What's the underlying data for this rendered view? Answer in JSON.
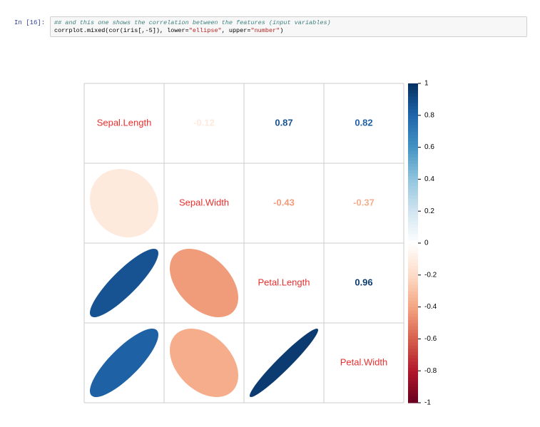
{
  "cell": {
    "prompt": "In [16]:",
    "comment": "## and this one shows the correlation between the features (input variables)",
    "code": [
      "corrplot.mixed(cor(iris[,-5]), lower=",
      "\"ellipse\"",
      ", upper=",
      "\"number\"",
      ")"
    ]
  },
  "chart_data": {
    "type": "corrplot",
    "variables": [
      "Sepal.Length",
      "Sepal.Width",
      "Petal.Length",
      "Petal.Width"
    ],
    "values": [
      [
        null,
        -0.12,
        0.87,
        0.82
      ],
      [
        null,
        null,
        -0.43,
        -0.37
      ],
      [
        null,
        null,
        null,
        0.96
      ],
      [
        null,
        null,
        null,
        null
      ]
    ],
    "ylim": [
      -1,
      1
    ],
    "yticks": [
      1,
      0.8,
      0.6,
      0.4,
      0.2,
      0,
      -0.2,
      -0.4,
      -0.6,
      -0.8,
      -1
    ],
    "label_color": "#e8302f",
    "colormap": [
      "#67001F",
      "#B2182B",
      "#D6604D",
      "#F4A582",
      "#FDDBC7",
      "#FFFFFF",
      "#D1E5F0",
      "#92C5DE",
      "#4393C3",
      "#2166AC",
      "#053061"
    ]
  }
}
